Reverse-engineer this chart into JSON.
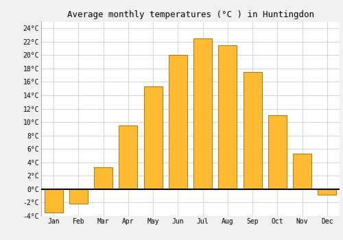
{
  "title": "Average monthly temperatures (°C ) in Huntingdon",
  "months": [
    "Jan",
    "Feb",
    "Mar",
    "Apr",
    "May",
    "Jun",
    "Jul",
    "Aug",
    "Sep",
    "Oct",
    "Nov",
    "Dec"
  ],
  "values": [
    -3.5,
    -2.2,
    3.3,
    9.5,
    15.3,
    20.0,
    22.5,
    21.5,
    17.5,
    11.0,
    5.3,
    -0.8
  ],
  "bar_color": "#FFBB33",
  "bar_edge_color": "#996600",
  "background_color": "#F0F0F0",
  "plot_bg_color": "#FFFFFF",
  "grid_color": "#CCCCCC",
  "ylim": [
    -4,
    25
  ],
  "yticks": [
    -4,
    -2,
    0,
    2,
    4,
    6,
    8,
    10,
    12,
    14,
    16,
    18,
    20,
    22,
    24
  ],
  "title_fontsize": 9,
  "tick_fontsize": 7,
  "bar_width": 0.75
}
